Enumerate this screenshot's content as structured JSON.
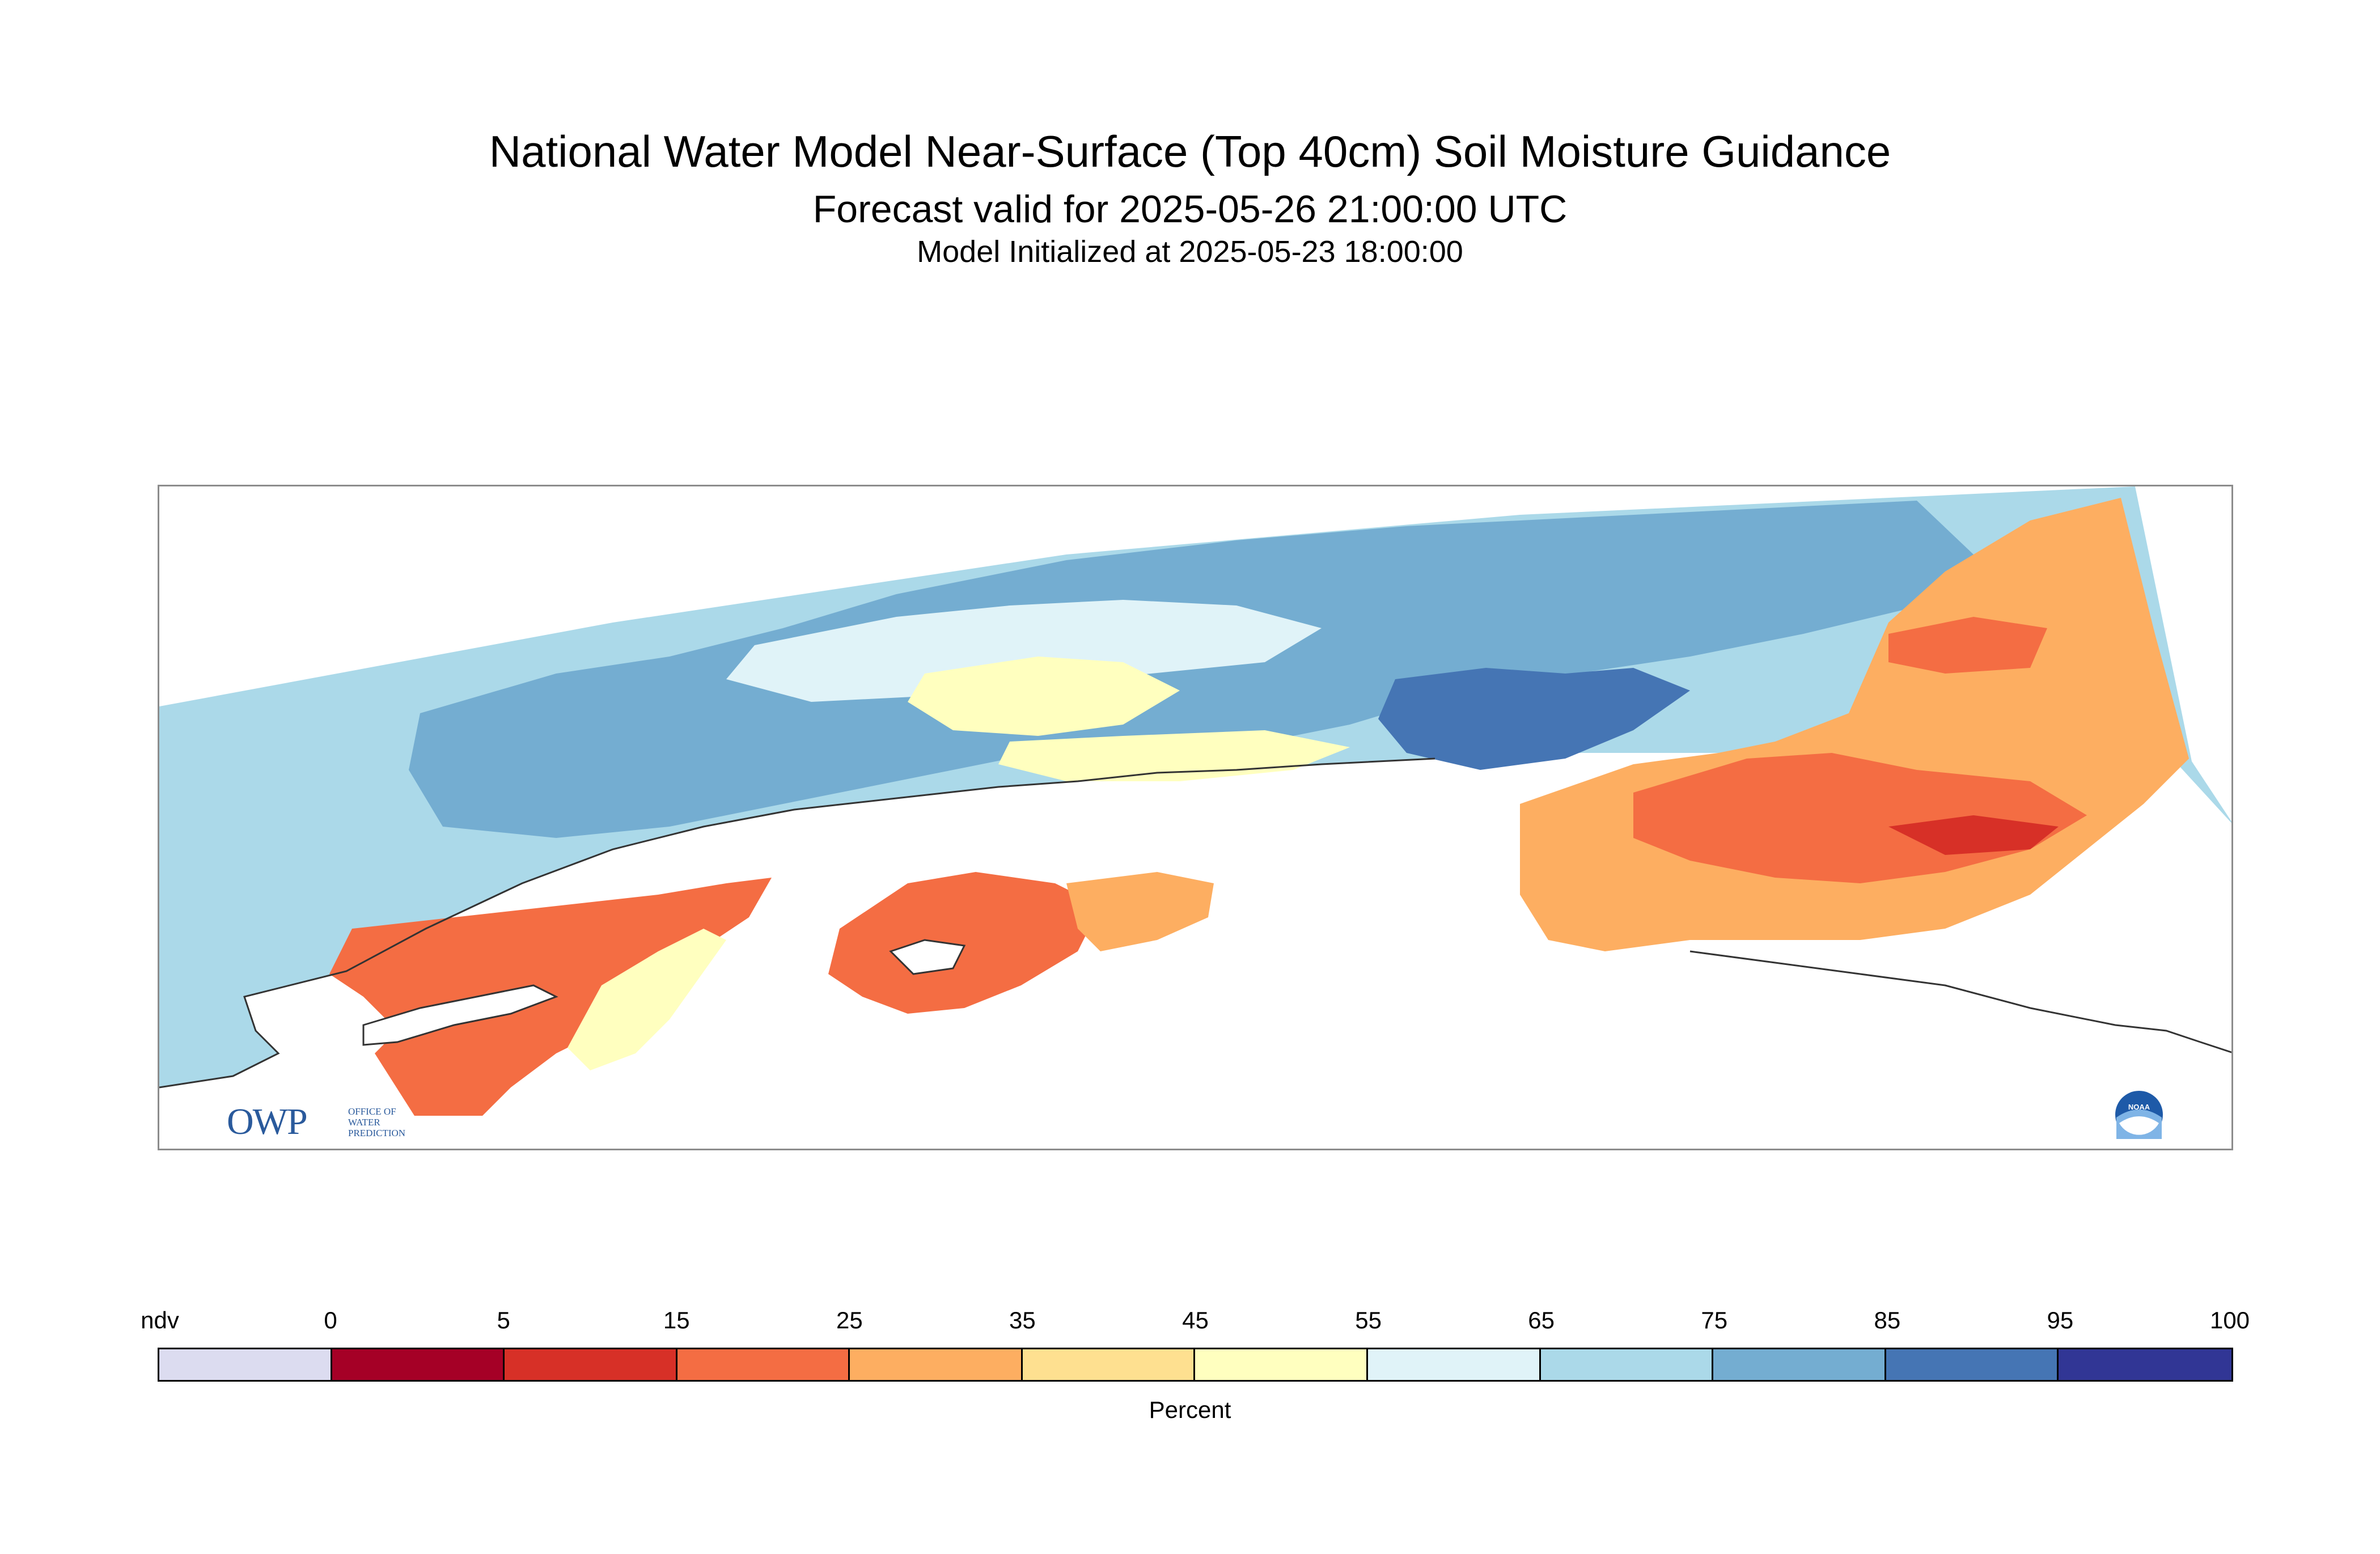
{
  "header": {
    "title": "National Water Model Near-Surface (Top 40cm) Soil Moisture Guidance",
    "forecast_valid": "Forecast valid for 2025-05-26 21:00:00 UTC",
    "initialized": "Model Initialized at 2025-05-23 18:00:00"
  },
  "logos": {
    "owp_letters": "OWP",
    "owp_line1": "OFFICE OF",
    "owp_line2": "WATER",
    "owp_line3": "PREDICTION",
    "noaa_text": "NOAA"
  },
  "legend": {
    "label": "Percent",
    "ticks": [
      "ndv",
      "0",
      "5",
      "15",
      "25",
      "35",
      "45",
      "55",
      "65",
      "75",
      "85",
      "95",
      "100"
    ],
    "colors": [
      "#dcdcf0",
      "#a50026",
      "#d73027",
      "#f46d43",
      "#fdae61",
      "#fee090",
      "#ffffbf",
      "#e0f3f8",
      "#abd9e9",
      "#74add1",
      "#4575b4",
      "#313695"
    ]
  }
}
